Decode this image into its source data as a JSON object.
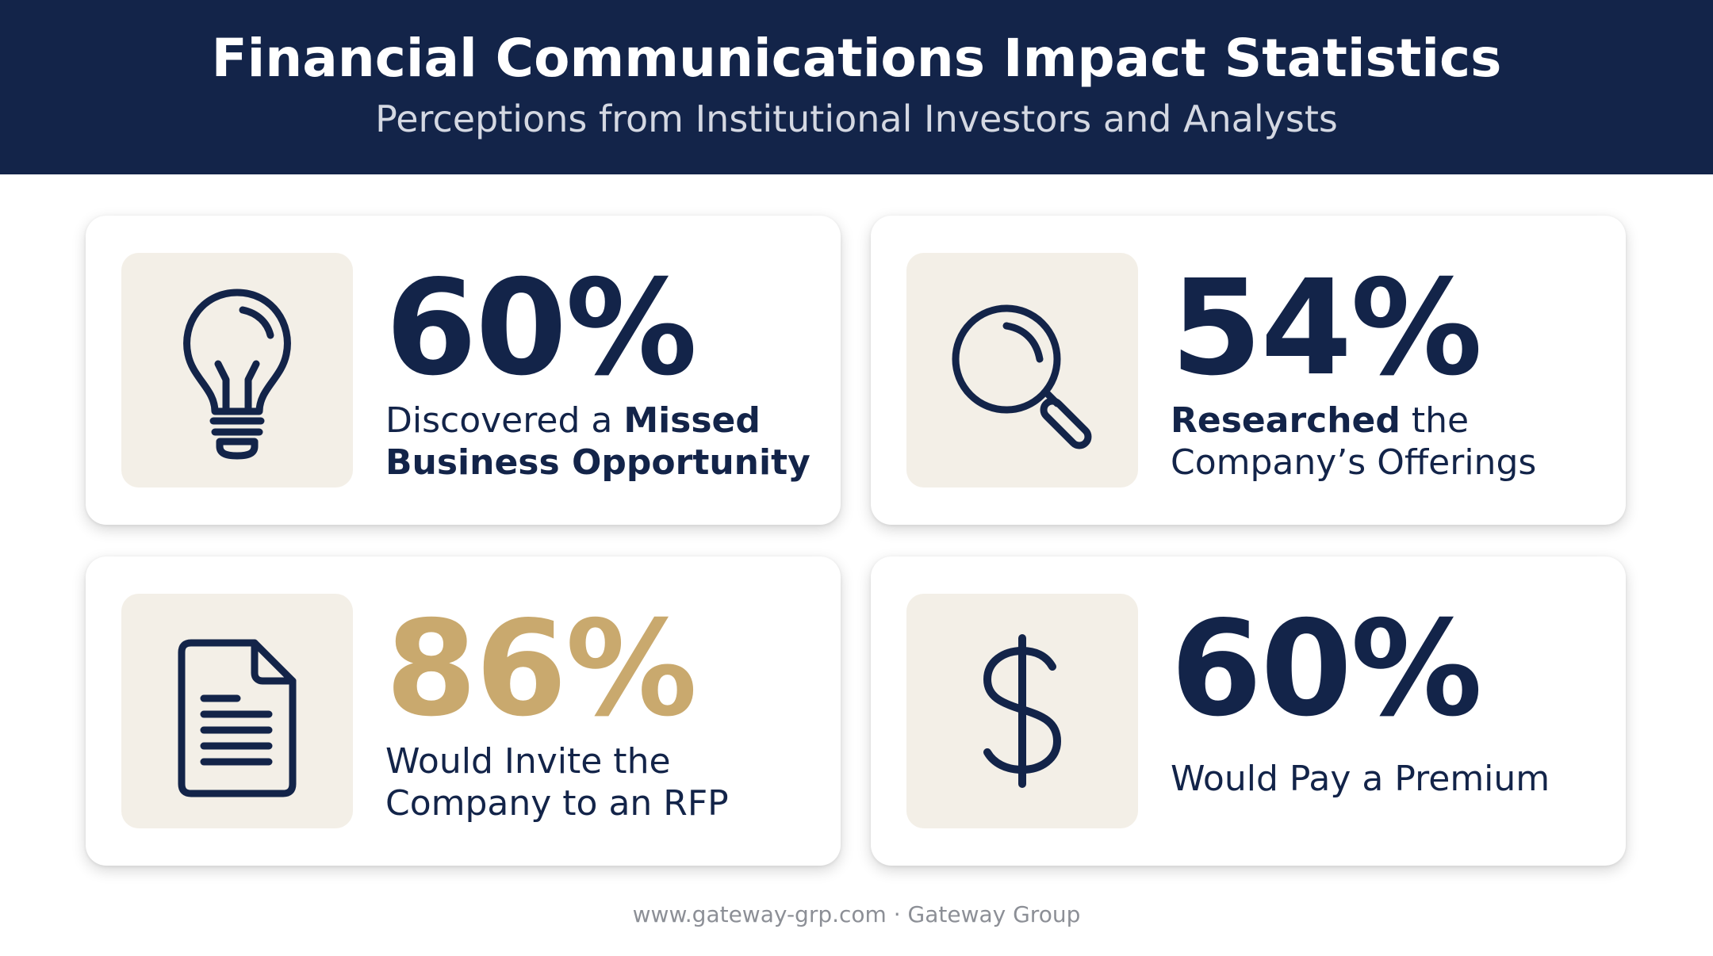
{
  "header": {
    "title": "Financial Communications Impact Statistics",
    "subtitle": "Perceptions from Institutional Investors and Analysts"
  },
  "colors": {
    "navy": "#132449",
    "gold": "#c9a96e",
    "icon_background": "#f3efe7"
  },
  "stats": [
    {
      "icon": "lightbulb-icon",
      "value": "60%",
      "line1_regular": "Discovered a ",
      "line1_bold": "Missed",
      "line2_bold": "Business Opportunity"
    },
    {
      "icon": "magnifying-glass-icon",
      "value": "54%",
      "line1_bold": "Researched",
      "line1_regular": " the",
      "line2_regular": "Company’s Offerings"
    },
    {
      "icon": "document-icon",
      "value": "86%",
      "line1_regular": "Would Invite the",
      "line2_regular": "Company to an RFP"
    },
    {
      "icon": "dollar-icon",
      "value": "60%",
      "line1_regular": "Would Pay a Premium"
    }
  ],
  "footer": {
    "text": "www.gateway-grp.com · Gateway Group"
  }
}
